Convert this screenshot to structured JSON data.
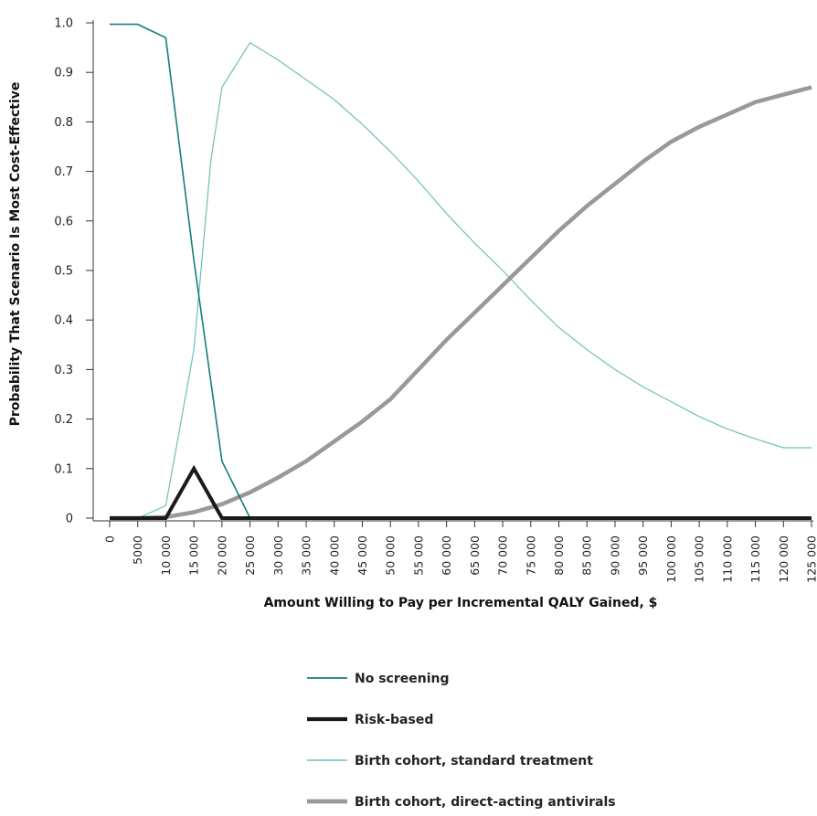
{
  "chart_data": {
    "type": "line",
    "title": "",
    "xlabel": "Amount Willing to Pay per Incremental QALY Gained, $",
    "ylabel": "Probability That Scenario Is Most Cost-Effective",
    "xlim": [
      0,
      125000
    ],
    "ylim": [
      0,
      1.0
    ],
    "x_tick_labels": [
      "0",
      "5000",
      "10 000",
      "15 000",
      "20 000",
      "25 000",
      "30 000",
      "35 000",
      "40 000",
      "45 000",
      "50 000",
      "55 000",
      "60 000",
      "65 000",
      "70 000",
      "75 000",
      "80 000",
      "85 000",
      "90 000",
      "95 000",
      "100 000",
      "105 000",
      "110 000",
      "115 000",
      "120 000",
      "125 000"
    ],
    "x_tick_values": [
      0,
      5000,
      10000,
      15000,
      20000,
      25000,
      30000,
      35000,
      40000,
      45000,
      50000,
      55000,
      60000,
      65000,
      70000,
      75000,
      80000,
      85000,
      90000,
      95000,
      100000,
      105000,
      110000,
      115000,
      120000,
      125000
    ],
    "y_tick_labels": [
      "0",
      "0.1",
      "0.2",
      "0.3",
      "0.4",
      "0.5",
      "0.6",
      "0.7",
      "0.8",
      "0.9",
      "1.0"
    ],
    "y_tick_values": [
      0,
      0.1,
      0.2,
      0.3,
      0.4,
      0.5,
      0.6,
      0.7,
      0.8,
      0.9,
      1.0
    ],
    "legend_position": "bottom",
    "series": [
      {
        "name": "No screening",
        "color": "#137f7a",
        "x": [
          0,
          5000,
          10000,
          15000,
          20000,
          25000,
          30000,
          125000
        ],
        "y": [
          0.997,
          0.997,
          0.97,
          0.52,
          0.115,
          0,
          0,
          0
        ]
      },
      {
        "name": "Risk-based",
        "color": "#1a1a1a",
        "x": [
          0,
          5000,
          10000,
          15000,
          20000,
          25000,
          125000
        ],
        "y": [
          0,
          0,
          0,
          0.1,
          0,
          0,
          0
        ]
      },
      {
        "name": "Birth cohort, standard treatment",
        "color": "#6cbfbb",
        "x": [
          0,
          5000,
          10000,
          15000,
          18000,
          20000,
          25000,
          30000,
          35000,
          40000,
          45000,
          50000,
          55000,
          60000,
          65000,
          70000,
          75000,
          80000,
          85000,
          90000,
          95000,
          100000,
          105000,
          110000,
          115000,
          120000,
          125000
        ],
        "y": [
          0,
          0,
          0.025,
          0.34,
          0.72,
          0.87,
          0.96,
          0.925,
          0.885,
          0.845,
          0.795,
          0.74,
          0.68,
          0.615,
          0.555,
          0.5,
          0.44,
          0.385,
          0.34,
          0.3,
          0.265,
          0.235,
          0.205,
          0.18,
          0.16,
          0.142,
          0.142
        ]
      },
      {
        "name": "Birth cohort, direct-acting antivirals",
        "color": "#999999",
        "x": [
          0,
          5000,
          10000,
          15000,
          20000,
          25000,
          30000,
          35000,
          40000,
          45000,
          50000,
          55000,
          60000,
          65000,
          70000,
          75000,
          80000,
          85000,
          90000,
          95000,
          100000,
          105000,
          110000,
          115000,
          120000,
          125000
        ],
        "y": [
          0,
          0,
          0.002,
          0.012,
          0.028,
          0.052,
          0.082,
          0.115,
          0.155,
          0.195,
          0.24,
          0.3,
          0.36,
          0.415,
          0.47,
          0.525,
          0.58,
          0.63,
          0.675,
          0.72,
          0.76,
          0.79,
          0.815,
          0.84,
          0.855,
          0.87
        ]
      }
    ]
  }
}
